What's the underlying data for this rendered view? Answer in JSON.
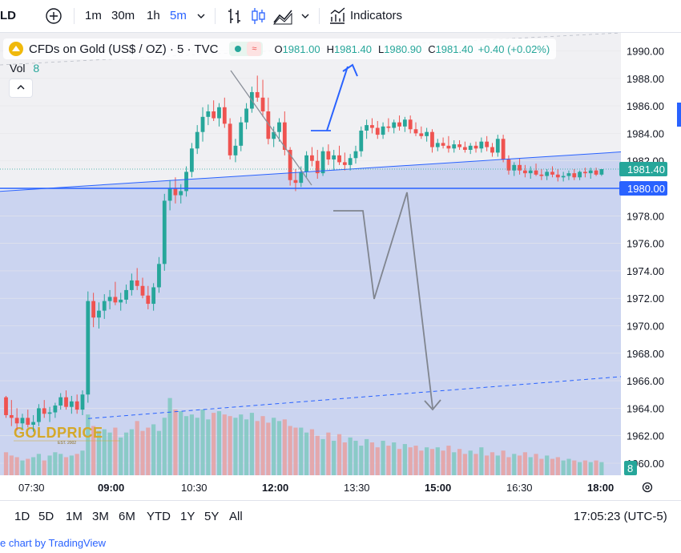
{
  "toolbar": {
    "symbol_partial": "LD",
    "add_icon": "plus-circle-icon",
    "intervals": [
      "1m",
      "30m",
      "1h",
      "5m"
    ],
    "active_interval": "5m",
    "chart_type_icons": [
      "bar-chart-icon",
      "candle-chart-icon",
      "area-chart-icon"
    ],
    "indicators_label": "Indicators"
  },
  "legend": {
    "symbol": "CFDs on Gold (US$ / OZ) · 5 · TVC",
    "open_label": "O",
    "open": "1981.00",
    "high_label": "H",
    "high": "1981.40",
    "low_label": "L",
    "low": "1980.90",
    "close_label": "C",
    "close": "1981.40",
    "change": "+0.40 (+0.02%)",
    "vol_label": "Vol",
    "vol_value": "8"
  },
  "price_labels": {
    "last": "1981.40",
    "line": "1980.00",
    "volume": "8"
  },
  "watermark": {
    "brand": "GOLDPRICE",
    "sub": "EST. 2002"
  },
  "colors": {
    "up": "#26a69a",
    "down": "#ef5350",
    "blue": "#2962ff",
    "zone": "#c6d0ef",
    "accent": "#2962ff"
  },
  "chart_data": {
    "type": "candlestick",
    "title": "CFDs on Gold (US$ / OZ) · 5 · TVC",
    "ylim": [
      1959.2,
      1991.7
    ],
    "yticks": [
      "1990.00",
      "1988.00",
      "1986.00",
      "1984.00",
      "1982.00",
      "1980.00",
      "1978.00",
      "1976.00",
      "1974.00",
      "1972.00",
      "1970.00",
      "1968.00",
      "1966.00",
      "1964.00",
      "1962.00",
      "1960.00"
    ],
    "xticks": [
      "07:30",
      "09:00",
      "10:30",
      "12:00",
      "13:30",
      "15:00",
      "16:30",
      "18:00"
    ],
    "x_start": "07:00",
    "interval_minutes": 5,
    "candles": [
      [
        1964.8,
        1964.9,
        1963.3,
        1963.5
      ],
      [
        1963.5,
        1964.6,
        1962.7,
        1963.3
      ],
      [
        1963.3,
        1964.0,
        1962.4,
        1962.9
      ],
      [
        1962.9,
        1963.6,
        1962.5,
        1963.3
      ],
      [
        1963.3,
        1963.9,
        1962.6,
        1962.8
      ],
      [
        1962.8,
        1963.5,
        1962.3,
        1963.0
      ],
      [
        1963.0,
        1964.3,
        1962.7,
        1964.0
      ],
      [
        1964.0,
        1964.6,
        1963.3,
        1963.6
      ],
      [
        1963.6,
        1964.1,
        1963.0,
        1963.7
      ],
      [
        1963.7,
        1964.4,
        1963.3,
        1964.2
      ],
      [
        1964.2,
        1965.1,
        1963.9,
        1964.8
      ],
      [
        1964.8,
        1965.3,
        1963.9,
        1964.1
      ],
      [
        1964.1,
        1964.9,
        1963.6,
        1964.5
      ],
      [
        1964.5,
        1965.0,
        1963.6,
        1963.9
      ],
      [
        1963.9,
        1965.3,
        1963.5,
        1965.0
      ],
      [
        1965.0,
        1972.5,
        1964.4,
        1971.8
      ],
      [
        1971.8,
        1972.4,
        1969.9,
        1970.6
      ],
      [
        1970.6,
        1971.7,
        1969.8,
        1971.1
      ],
      [
        1971.1,
        1972.3,
        1970.5,
        1971.8
      ],
      [
        1971.8,
        1972.6,
        1971.2,
        1972.1
      ],
      [
        1972.1,
        1973.2,
        1971.5,
        1971.7
      ],
      [
        1971.7,
        1972.4,
        1971.1,
        1971.9
      ],
      [
        1971.9,
        1973.0,
        1971.6,
        1972.6
      ],
      [
        1972.6,
        1973.8,
        1972.2,
        1973.3
      ],
      [
        1973.3,
        1974.2,
        1972.6,
        1972.9
      ],
      [
        1972.9,
        1973.5,
        1972.0,
        1972.2
      ],
      [
        1972.2,
        1972.9,
        1971.2,
        1971.6
      ],
      [
        1971.6,
        1973.1,
        1971.1,
        1972.8
      ],
      [
        1972.8,
        1975.0,
        1972.4,
        1974.5
      ],
      [
        1974.5,
        1979.6,
        1974.0,
        1979.1
      ],
      [
        1979.1,
        1980.6,
        1978.4,
        1980.0
      ],
      [
        1980.0,
        1980.8,
        1978.9,
        1979.5
      ],
      [
        1979.5,
        1980.3,
        1978.9,
        1979.8
      ],
      [
        1979.8,
        1981.6,
        1979.4,
        1981.2
      ],
      [
        1981.2,
        1983.3,
        1980.8,
        1982.9
      ],
      [
        1982.9,
        1984.6,
        1982.5,
        1984.1
      ],
      [
        1984.1,
        1985.9,
        1983.4,
        1985.2
      ],
      [
        1985.2,
        1986.1,
        1984.6,
        1985.6
      ],
      [
        1985.6,
        1986.4,
        1984.9,
        1985.1
      ],
      [
        1985.1,
        1986.2,
        1984.5,
        1985.9
      ],
      [
        1985.9,
        1986.6,
        1984.4,
        1984.7
      ],
      [
        1984.7,
        1985.1,
        1982.1,
        1982.4
      ],
      [
        1982.4,
        1983.6,
        1981.9,
        1983.1
      ],
      [
        1983.1,
        1985.2,
        1982.7,
        1984.8
      ],
      [
        1984.8,
        1986.2,
        1984.3,
        1985.8
      ],
      [
        1985.8,
        1987.4,
        1985.5,
        1987.0
      ],
      [
        1987.0,
        1988.2,
        1986.3,
        1986.6
      ],
      [
        1986.6,
        1987.9,
        1985.2,
        1985.6
      ],
      [
        1985.6,
        1986.6,
        1983.2,
        1983.6
      ],
      [
        1983.6,
        1984.5,
        1983.0,
        1984.1
      ],
      [
        1984.1,
        1985.1,
        1983.4,
        1984.8
      ],
      [
        1984.8,
        1985.6,
        1982.4,
        1982.8
      ],
      [
        1982.8,
        1983.0,
        1980.2,
        1980.6
      ],
      [
        1980.6,
        1981.4,
        1979.8,
        1980.4
      ],
      [
        1980.4,
        1981.6,
        1980.1,
        1981.2
      ],
      [
        1981.2,
        1982.7,
        1980.8,
        1982.4
      ],
      [
        1982.4,
        1983.0,
        1981.6,
        1982.0
      ],
      [
        1982.0,
        1982.8,
        1980.7,
        1981.1
      ],
      [
        1981.1,
        1983.0,
        1980.9,
        1982.7
      ],
      [
        1982.7,
        1983.2,
        1981.7,
        1982.1
      ],
      [
        1982.1,
        1982.8,
        1981.3,
        1982.4
      ],
      [
        1982.4,
        1983.1,
        1981.7,
        1981.9
      ],
      [
        1981.9,
        1982.6,
        1981.3,
        1981.7
      ],
      [
        1981.7,
        1982.5,
        1981.3,
        1982.2
      ],
      [
        1982.2,
        1983.1,
        1981.8,
        1982.7
      ],
      [
        1982.7,
        1984.5,
        1982.3,
        1984.2
      ],
      [
        1984.2,
        1985.0,
        1983.6,
        1984.6
      ],
      [
        1984.6,
        1985.1,
        1984.0,
        1984.4
      ],
      [
        1984.4,
        1984.9,
        1983.6,
        1983.9
      ],
      [
        1983.9,
        1984.8,
        1983.6,
        1984.5
      ],
      [
        1984.5,
        1985.1,
        1984.1,
        1984.4
      ],
      [
        1984.4,
        1985.0,
        1984.0,
        1984.8
      ],
      [
        1984.8,
        1985.3,
        1984.2,
        1984.5
      ],
      [
        1984.5,
        1985.2,
        1984.1,
        1985.0
      ],
      [
        1985.0,
        1985.3,
        1984.0,
        1984.3
      ],
      [
        1984.3,
        1984.8,
        1983.8,
        1984.0
      ],
      [
        1984.0,
        1984.5,
        1983.6,
        1983.8
      ],
      [
        1983.8,
        1984.4,
        1983.4,
        1984.1
      ],
      [
        1984.1,
        1984.3,
        1982.6,
        1983.0
      ],
      [
        1983.0,
        1983.6,
        1982.7,
        1983.3
      ],
      [
        1983.3,
        1983.7,
        1982.9,
        1983.1
      ],
      [
        1983.1,
        1983.8,
        1982.6,
        1982.9
      ],
      [
        1982.9,
        1983.5,
        1982.6,
        1983.2
      ],
      [
        1983.2,
        1983.5,
        1982.8,
        1983.0
      ],
      [
        1983.0,
        1983.4,
        1982.6,
        1982.8
      ],
      [
        1982.8,
        1983.3,
        1982.5,
        1983.1
      ],
      [
        1983.1,
        1983.4,
        1982.6,
        1982.9
      ],
      [
        1982.9,
        1983.7,
        1982.6,
        1983.4
      ],
      [
        1983.4,
        1983.8,
        1982.7,
        1983.0
      ],
      [
        1983.0,
        1983.3,
        1982.3,
        1982.6
      ],
      [
        1982.6,
        1983.9,
        1982.3,
        1983.6
      ],
      [
        1983.6,
        1983.9,
        1981.9,
        1982.1
      ],
      [
        1982.1,
        1982.4,
        1981.0,
        1981.3
      ],
      [
        1981.3,
        1981.9,
        1980.9,
        1981.7
      ],
      [
        1981.7,
        1982.2,
        1981.0,
        1981.3
      ],
      [
        1981.3,
        1981.7,
        1980.8,
        1981.1
      ],
      [
        1981.1,
        1981.6,
        1980.7,
        1981.3
      ],
      [
        1981.3,
        1981.8,
        1980.9,
        1981.0
      ],
      [
        1981.0,
        1981.4,
        1980.6,
        1980.9
      ],
      [
        1980.9,
        1981.4,
        1980.6,
        1981.2
      ],
      [
        1981.2,
        1981.6,
        1980.8,
        1981.0
      ],
      [
        1981.0,
        1981.4,
        1980.5,
        1980.8
      ],
      [
        1980.8,
        1981.2,
        1980.5,
        1980.9
      ],
      [
        1980.9,
        1981.3,
        1980.6,
        1981.1
      ],
      [
        1981.1,
        1981.4,
        1980.6,
        1980.8
      ],
      [
        1980.8,
        1981.3,
        1980.6,
        1981.2
      ],
      [
        1981.2,
        1981.5,
        1980.8,
        1981.1
      ],
      [
        1981.1,
        1981.5,
        1980.7,
        1981.3
      ],
      [
        1981.3,
        1981.5,
        1980.9,
        1981.0
      ],
      [
        1981.0,
        1981.4,
        1980.9,
        1981.4
      ]
    ],
    "volumes": [
      14,
      12,
      11,
      9,
      10,
      11,
      13,
      9,
      12,
      14,
      13,
      11,
      12,
      13,
      15,
      37,
      30,
      27,
      28,
      26,
      29,
      23,
      26,
      28,
      33,
      27,
      29,
      31,
      27,
      35,
      47,
      40,
      39,
      36,
      37,
      35,
      40,
      34,
      38,
      39,
      37,
      36,
      35,
      37,
      34,
      38,
      33,
      36,
      32,
      35,
      33,
      34,
      30,
      29,
      29,
      26,
      28,
      24,
      22,
      26,
      21,
      25,
      20,
      23,
      21,
      18,
      22,
      20,
      17,
      21,
      18,
      20,
      16,
      19,
      17,
      18,
      15,
      17,
      16,
      17,
      15,
      18,
      14,
      16,
      13,
      15,
      13,
      17,
      12,
      14,
      12,
      15,
      11,
      13,
      12,
      14,
      11,
      13,
      10,
      12,
      10,
      11,
      9,
      10,
      9,
      8,
      9,
      8,
      9,
      8,
      8
    ],
    "horizontal_lines": [
      1980.0
    ],
    "last_price": 1981.4
  }
}
